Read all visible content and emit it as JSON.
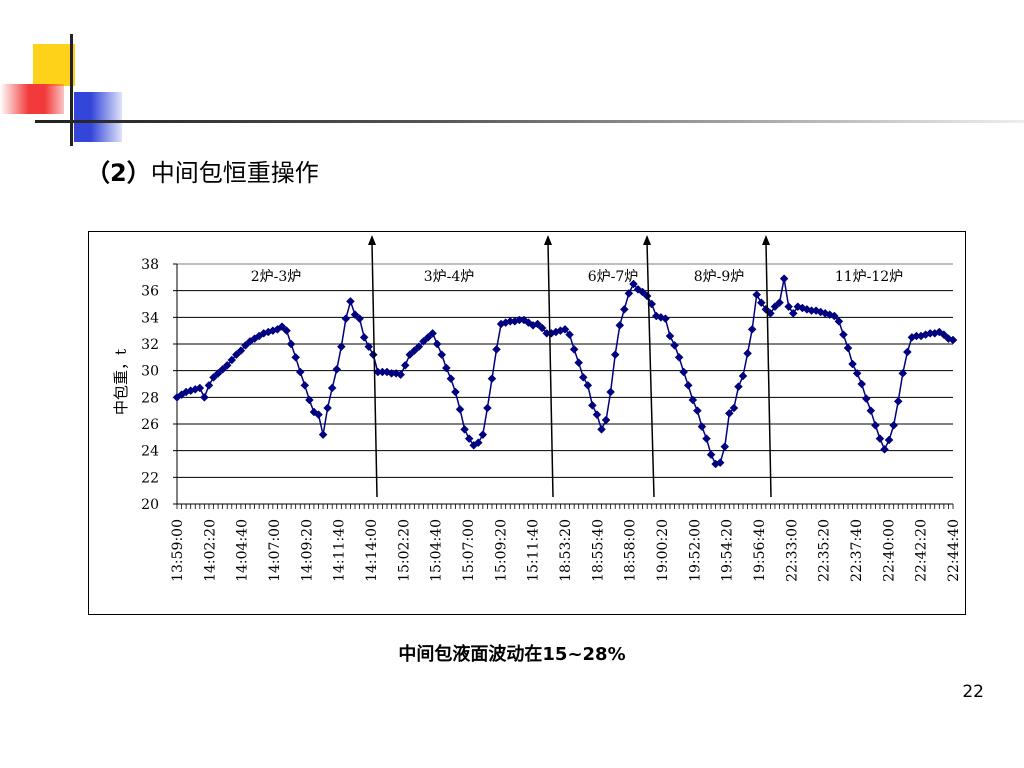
{
  "slide": {
    "title_prefix": "（2）",
    "title_text": "中间包恒重操作",
    "caption": "中间包液面波动在15~28%",
    "page_number": "22"
  },
  "colors": {
    "series": "#000080",
    "deco_yellow": "#FFD21A",
    "deco_red": "#F23A3A",
    "deco_blue": "#3446D9"
  },
  "chart_data": {
    "type": "line",
    "ylabel": "中包重，t",
    "xlabel": "",
    "ylim": [
      20,
      38
    ],
    "yticks": [
      20,
      22,
      24,
      26,
      28,
      30,
      32,
      34,
      36,
      38
    ],
    "grid": true,
    "x_tick_labels": [
      "13:59:00",
      "14:02:20",
      "14:04:40",
      "14:07:00",
      "14:09:20",
      "14:11:40",
      "14:14:00",
      "15:02:20",
      "15:04:40",
      "15:07:00",
      "15:09:20",
      "15:11:40",
      "18:53:20",
      "18:55:40",
      "18:58:00",
      "19:00:20",
      "19:52:00",
      "19:54:20",
      "19:56:40",
      "22:33:00",
      "22:35:20",
      "22:37:40",
      "22:40:00",
      "22:42:20",
      "22:44:40"
    ],
    "annotations": [
      "2炉-3炉",
      "3炉-4炉",
      "6炉-7炉",
      "8炉-9炉",
      "11炉-12炉"
    ],
    "marker": "diamond",
    "series": [
      {
        "values": [
          28.0,
          28.2,
          28.4,
          28.5,
          28.6,
          28.7,
          28.0,
          28.9,
          29.5,
          29.8,
          30.1,
          30.4,
          30.8,
          31.2,
          31.5,
          31.9,
          32.2,
          32.4,
          32.6,
          32.8,
          32.9,
          33.0,
          33.1,
          33.3,
          33.0,
          32.0,
          31.0,
          29.9,
          28.9,
          27.8,
          26.9,
          26.7,
          25.2,
          27.2,
          28.7,
          30.1,
          31.8,
          33.9,
          35.2,
          34.2,
          33.9,
          32.5,
          31.8,
          31.2,
          29.9,
          29.9,
          29.9,
          29.8,
          29.8,
          29.7,
          30.4,
          31.2,
          31.5,
          31.8,
          32.2,
          32.5,
          32.8,
          32.0,
          31.2,
          30.2,
          29.4,
          28.4,
          27.1,
          25.6,
          24.9,
          24.4,
          24.6,
          25.2,
          27.2,
          29.4,
          31.6,
          33.5,
          33.6,
          33.7,
          33.7,
          33.8,
          33.8,
          33.6,
          33.4,
          33.5,
          33.2,
          32.8,
          32.8,
          32.9,
          33.0,
          33.1,
          32.7,
          31.6,
          30.6,
          29.5,
          28.9,
          27.4,
          26.7,
          25.6,
          26.3,
          28.4,
          31.2,
          33.4,
          34.6,
          35.8,
          36.5,
          36.1,
          35.9,
          35.6,
          35.0,
          34.1,
          34.0,
          33.9,
          32.6,
          31.9,
          31.0,
          29.9,
          28.9,
          27.8,
          27.0,
          25.8,
          24.9,
          23.7,
          23.0,
          23.1,
          24.3,
          26.8,
          27.2,
          28.8,
          29.6,
          31.3,
          33.1,
          35.7,
          35.1,
          34.6,
          34.3,
          34.8,
          35.1,
          36.9,
          34.8,
          34.3,
          34.8,
          34.7,
          34.6,
          34.5,
          34.5,
          34.4,
          34.3,
          34.2,
          34.1,
          33.7,
          32.7,
          31.7,
          30.5,
          29.8,
          29.0,
          27.9,
          27.0,
          25.9,
          24.9,
          24.1,
          24.8,
          25.9,
          27.7,
          29.8,
          31.4,
          32.5,
          32.6,
          32.6,
          32.7,
          32.8,
          32.8,
          32.9,
          32.7,
          32.4,
          32.3
        ]
      }
    ]
  }
}
